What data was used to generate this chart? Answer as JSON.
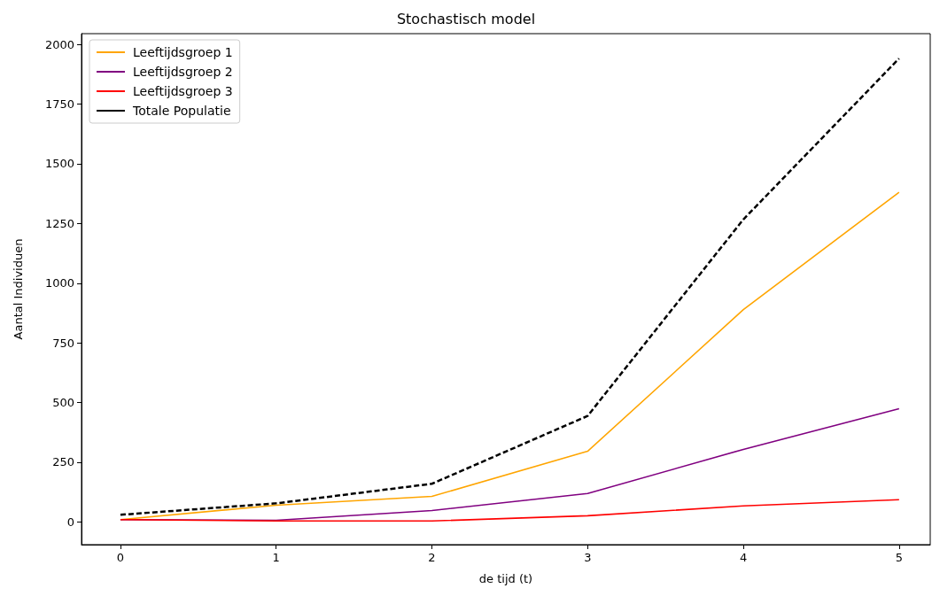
{
  "chart_data": {
    "type": "line",
    "title": "Stochastisch model",
    "xlabel": "de tijd (t)",
    "ylabel": "Aantal Individuen",
    "x": [
      0,
      1,
      2,
      3,
      4,
      5
    ],
    "series": [
      {
        "name": "Leeftijdsgroep 1",
        "color": "#ffa500",
        "values": [
          10,
          70,
          107,
          296,
          889,
          1381
        ]
      },
      {
        "name": "Leeftijdsgroep 2",
        "color": "#800080",
        "values": [
          10,
          7,
          48,
          119,
          304,
          474
        ]
      },
      {
        "name": "Leeftijdsgroep 3",
        "color": "#ff0000",
        "values": [
          10,
          4,
          4,
          26,
          67,
          93
        ]
      },
      {
        "name": "Totale Populatie",
        "color": "#000000",
        "values": [
          30,
          78,
          160,
          444,
          1267,
          1941
        ],
        "line_style": "dashed"
      }
    ],
    "xlim": [
      -0.25,
      5.2
    ],
    "xticks": [
      0,
      1,
      2,
      3,
      4,
      5
    ],
    "ylim": [
      -95,
      2045
    ],
    "yticks": [
      0,
      250,
      500,
      750,
      1000,
      1250,
      1500,
      1750,
      2000
    ],
    "legend": "top left",
    "marker": "none",
    "line_style": "solid"
  }
}
